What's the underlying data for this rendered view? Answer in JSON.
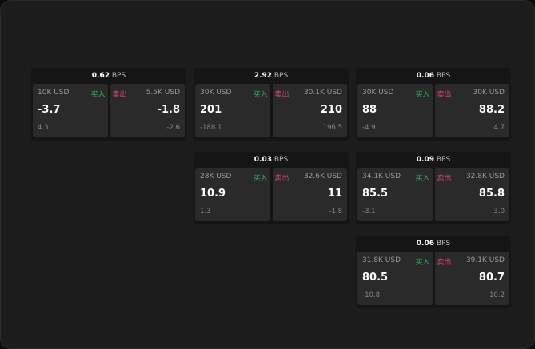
{
  "labels": {
    "buy": "买入",
    "sell": "卖出",
    "unit": "BPS"
  },
  "colors": {
    "buy": "#2fae5a",
    "sell": "#e0466b"
  },
  "cards": [
    {
      "spread": "0.62",
      "buy": {
        "size": "10K USD",
        "price": "-3.7",
        "change": "4.3"
      },
      "sell": {
        "size": "5.5K USD",
        "price": "-1.8",
        "change": "-2.6"
      }
    },
    {
      "spread": "2.92",
      "buy": {
        "size": "30K USD",
        "price": "201",
        "change": "-188.1"
      },
      "sell": {
        "size": "30.1K USD",
        "price": "210",
        "change": "196.5"
      }
    },
    {
      "spread": "0.06",
      "buy": {
        "size": "30K USD",
        "price": "88",
        "change": "-4.9"
      },
      "sell": {
        "size": "30K USD",
        "price": "88.2",
        "change": "4.7"
      }
    },
    {
      "spread": "0.03",
      "buy": {
        "size": "28K USD",
        "price": "10.9",
        "change": "1.3"
      },
      "sell": {
        "size": "32.6K USD",
        "price": "11",
        "change": "-1.8"
      }
    },
    {
      "spread": "0.09",
      "buy": {
        "size": "34.1K USD",
        "price": "85.5",
        "change": "-3.1"
      },
      "sell": {
        "size": "32.8K USD",
        "price": "85.8",
        "change": "3.0"
      }
    },
    {
      "spread": "0.06",
      "buy": {
        "size": "31.8K USD",
        "price": "80.5",
        "change": "-10.8"
      },
      "sell": {
        "size": "39.1K USD",
        "price": "80.7",
        "change": "10.2"
      }
    }
  ]
}
